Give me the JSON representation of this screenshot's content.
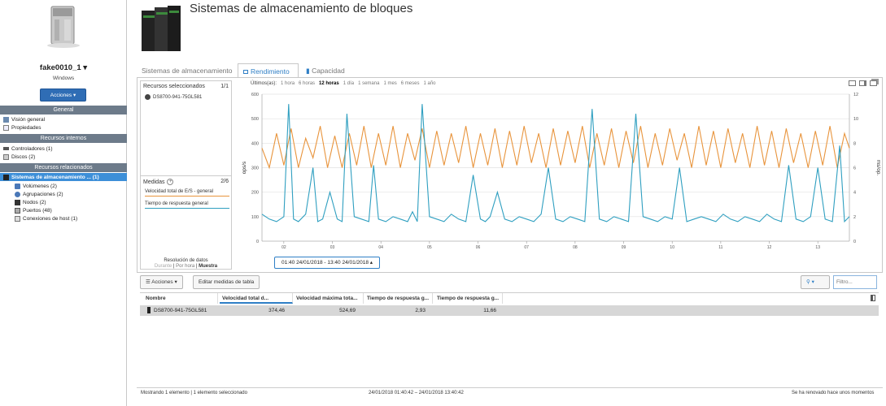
{
  "sidebar": {
    "server_name": "fake0010_1",
    "server_os": "Windows",
    "actions_label": "Acciones",
    "sections": {
      "general": "General",
      "internal": "Recursos internos",
      "related": "Recursos relacionados"
    },
    "general_items": [
      "Visión general",
      "Propiedades"
    ],
    "internal_items": [
      "Controladores (1)",
      "Discos (2)"
    ],
    "related_selected": "Sistemas de almacenamiento ... (1)",
    "related_items": [
      "Volúmenes (2)",
      "Agrupaciones (2)",
      "Nodos (2)",
      "Puertos (48)",
      "Conexiones de host (1)"
    ]
  },
  "header": {
    "title": "Sistemas de almacenamiento de bloques"
  },
  "tabs": [
    {
      "label": "Sistemas de almacenamiento"
    },
    {
      "label": "Rendimiento"
    },
    {
      "label": "Capacidad"
    }
  ],
  "resources": {
    "title": "Recursos seleccionados",
    "count": "1/1",
    "items": [
      "DS8700-941-75GL581"
    ]
  },
  "measures": {
    "title": "Medidas",
    "count": "2/6",
    "items": [
      "Velocidad total de E/S - general",
      "Tiempo de respuesta general"
    ]
  },
  "resolution": {
    "title": "Resolución de datos",
    "options": [
      "Durante",
      "Por hora",
      "Muestra"
    ]
  },
  "time_ranges": {
    "label": "Últimos(as):",
    "options": [
      "1 hora",
      "6 horas",
      "12 horas",
      "1 día",
      "1 semana",
      "1 mes",
      "6 meses",
      "1 año"
    ],
    "selected": "12 horas",
    "current": "01:40 24/01/2018 - 13:40 24/01/2018"
  },
  "colors": {
    "io": "#e8943c",
    "response": "#2f9fc0",
    "accent": "#2f7fc6"
  },
  "chart_data": {
    "type": "line",
    "ylabel": "ops/s",
    "y2label": "ms/op.",
    "ylim": [
      0,
      600
    ],
    "y2lim": [
      0,
      12
    ],
    "yticks": [
      0,
      100,
      200,
      300,
      400,
      500,
      600
    ],
    "y2ticks": [
      0,
      2,
      4,
      6,
      8,
      10,
      12
    ],
    "x_ticks": [
      "02",
      "03",
      "04",
      "05",
      "06",
      "07",
      "08",
      "09",
      "10",
      "11",
      "12",
      "13"
    ],
    "x_range": [
      1.55,
      13.65
    ],
    "series": [
      {
        "name": "Velocidad total de E/S - general",
        "axis": "left",
        "color": "#e8943c",
        "x": [
          1.55,
          1.7,
          1.85,
          2.0,
          2.15,
          2.3,
          2.45,
          2.6,
          2.75,
          2.9,
          3.05,
          3.2,
          3.35,
          3.5,
          3.65,
          3.8,
          3.95,
          4.1,
          4.25,
          4.4,
          4.55,
          4.7,
          4.85,
          5.0,
          5.15,
          5.3,
          5.45,
          5.6,
          5.75,
          5.9,
          6.05,
          6.2,
          6.35,
          6.5,
          6.65,
          6.8,
          6.95,
          7.1,
          7.25,
          7.4,
          7.55,
          7.7,
          7.85,
          8.0,
          8.15,
          8.3,
          8.45,
          8.6,
          8.75,
          8.9,
          9.05,
          9.2,
          9.35,
          9.5,
          9.65,
          9.8,
          9.95,
          10.1,
          10.25,
          10.4,
          10.55,
          10.7,
          10.85,
          11.0,
          11.15,
          11.3,
          11.45,
          11.6,
          11.75,
          11.9,
          12.05,
          12.2,
          12.35,
          12.5,
          12.65,
          12.8,
          12.95,
          13.1,
          13.25,
          13.4,
          13.55,
          13.65
        ],
        "y": [
          380,
          300,
          440,
          310,
          460,
          300,
          420,
          340,
          470,
          300,
          430,
          300,
          440,
          310,
          470,
          300,
          440,
          310,
          470,
          300,
          440,
          330,
          460,
          300,
          450,
          310,
          440,
          320,
          470,
          300,
          440,
          310,
          460,
          300,
          450,
          310,
          470,
          320,
          440,
          300,
          460,
          310,
          450,
          320,
          470,
          300,
          440,
          310,
          460,
          300,
          450,
          320,
          470,
          300,
          440,
          310,
          460,
          330,
          440,
          300,
          470,
          310,
          450,
          300,
          460,
          320,
          440,
          300,
          470,
          310,
          450,
          300,
          460,
          320,
          440,
          300,
          450,
          310,
          470,
          300,
          440,
          380
        ]
      },
      {
        "name": "Tiempo de respuesta general",
        "axis": "left",
        "color": "#2f9fc0",
        "x": [
          1.55,
          1.7,
          1.85,
          2.0,
          2.1,
          2.2,
          2.3,
          2.45,
          2.6,
          2.7,
          2.8,
          2.95,
          3.1,
          3.2,
          3.3,
          3.45,
          3.6,
          3.75,
          3.85,
          3.95,
          4.1,
          4.25,
          4.4,
          4.55,
          4.65,
          4.75,
          4.85,
          5.0,
          5.15,
          5.3,
          5.45,
          5.6,
          5.75,
          5.9,
          6.05,
          6.15,
          6.25,
          6.4,
          6.55,
          6.7,
          6.85,
          7.0,
          7.15,
          7.3,
          7.45,
          7.6,
          7.75,
          7.9,
          8.05,
          8.2,
          8.35,
          8.5,
          8.65,
          8.8,
          8.95,
          9.1,
          9.25,
          9.4,
          9.55,
          9.7,
          9.85,
          10.0,
          10.15,
          10.3,
          10.45,
          10.6,
          10.75,
          10.9,
          11.05,
          11.2,
          11.35,
          11.5,
          11.65,
          11.8,
          11.95,
          12.1,
          12.25,
          12.4,
          12.55,
          12.7,
          12.85,
          13.0,
          13.15,
          13.3,
          13.45,
          13.55,
          13.65
        ],
        "y": [
          110,
          90,
          80,
          100,
          560,
          90,
          80,
          110,
          300,
          80,
          90,
          200,
          90,
          80,
          520,
          100,
          90,
          80,
          310,
          90,
          80,
          100,
          90,
          80,
          120,
          80,
          560,
          100,
          90,
          80,
          110,
          90,
          80,
          270,
          90,
          80,
          100,
          200,
          90,
          80,
          100,
          90,
          80,
          110,
          300,
          90,
          80,
          100,
          90,
          80,
          540,
          90,
          80,
          100,
          90,
          80,
          520,
          100,
          90,
          80,
          100,
          90,
          300,
          80,
          90,
          100,
          90,
          80,
          110,
          90,
          80,
          100,
          90,
          80,
          110,
          90,
          80,
          310,
          90,
          80,
          100,
          300,
          90,
          80,
          390,
          80,
          100
        ]
      }
    ]
  },
  "table": {
    "actions_label": "Acciones",
    "edit_label": "Editar medidas de tabla",
    "filter_placeholder": "Filtro...",
    "columns": [
      "Nombre",
      "Velocidad total d...",
      "Velocidad máxima tota...",
      "Tiempo de respuesta g...",
      "Tiempo de respuesta g..."
    ],
    "rows": [
      {
        "name": "DS8700-941-75GL581",
        "v1": "374,46",
        "v2": "524,69",
        "v3": "2,93",
        "v4": "11,66"
      }
    ]
  },
  "footer": {
    "showing": "Mostrando 1 elemento | 1 elemento seleccionado",
    "range": "24/01/2018 01:40:42 – 24/01/2018 13:40:42",
    "refresh": "Se ha renovado hace unos momentos"
  }
}
